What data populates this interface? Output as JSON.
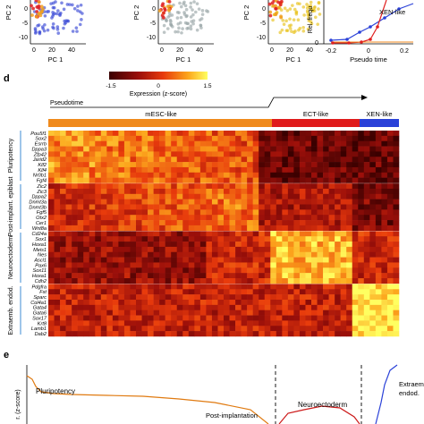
{
  "top_panels": {
    "axis_x_label": "PC 1",
    "axis_y_label_partial": "PC 2",
    "x_ticks": [
      "0",
      "20",
      "40"
    ],
    "y_ticks": [
      "0",
      "-5",
      "-10"
    ],
    "freq_panel": {
      "y_label_partial": "Rel. frequ",
      "x_label": "Pseudo time",
      "x_ticks": [
        "-0.2",
        "0",
        "0.2"
      ],
      "y_ticks": [
        "0"
      ],
      "legend_xen": "XEN-like"
    },
    "colors": [
      "#3b49d6",
      "#9aa6a8",
      "#e8c21a",
      "#e02020",
      "#1f5fc9"
    ]
  },
  "panel_d": {
    "label": "d",
    "colorbar_ticks": [
      "-1.5",
      "0",
      "1.5"
    ],
    "colorbar_label": "Expression (z-score)",
    "pseudotime_label": "Pseudotime",
    "states": [
      {
        "label": "mESC-like",
        "color": "#f08a1c"
      },
      {
        "label": "ECT-like",
        "color": "#e01b1b"
      },
      {
        "label": "XEN-like",
        "color": "#2a41d8"
      }
    ],
    "groups": [
      {
        "label": "Pluripotency",
        "genes": [
          "Pou5f1",
          "Sox2",
          "Esrrb",
          "Dppa3",
          "Zfp42",
          "Jarid2",
          "Klf2",
          "Klf4",
          "Nr0b1",
          "Fgf4"
        ]
      },
      {
        "label": "Post-implant. epiblast",
        "genes": [
          "Zic2",
          "Zic3",
          "Dppa2",
          "Dnmt3a",
          "Dnmt3b",
          "Fgf5",
          "Otx2",
          "Cer1",
          "Wnt8a"
        ]
      },
      {
        "label": "Neuroectoderm",
        "genes": [
          "Cd24a",
          "Sox1",
          "Hoxa1",
          "Meis1",
          "Nes",
          "Ascl1",
          "Pax6",
          "Sox11",
          "Hoxa1",
          "Cdh2"
        ]
      },
      {
        "label": "Extraemb. endod.",
        "genes": [
          "Pdgfra",
          "Fst",
          "Sparc",
          "Col4a1",
          "Gata4",
          "Gata6",
          "Sox17",
          "Krt8",
          "Lamb1",
          "Dab2"
        ]
      }
    ]
  },
  "panel_e": {
    "label": "e",
    "y_label_partial": "r. (z-score)",
    "annotations": [
      {
        "text": "Pluripotency",
        "color": "#e07a10"
      },
      {
        "text": "Post-implantation",
        "color": "#7cd53a"
      },
      {
        "text": "Neuroectoderm",
        "color": "#cc1a1a"
      },
      {
        "text": "Extraemb. endod.",
        "color": "#2a41d8"
      }
    ]
  }
}
